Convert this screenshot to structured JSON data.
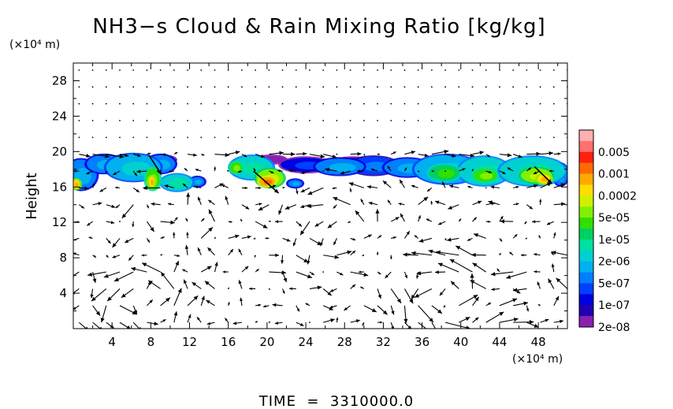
{
  "chart_data": {
    "type": "heatmap",
    "title": "NH3−s Cloud & Rain Mixing Ratio [kg/kg]",
    "xlabel": "",
    "ylabel": "Height",
    "x_unit_label": "(×10⁴ m)",
    "y_unit_label": "(×10⁴ m)",
    "xlim": [
      0,
      51
    ],
    "ylim": [
      0,
      30
    ],
    "x_ticks": [
      4,
      8,
      12,
      16,
      20,
      24,
      28,
      32,
      36,
      40,
      44,
      48
    ],
    "y_ticks": [
      4,
      8,
      12,
      16,
      20,
      24,
      28
    ],
    "footer": "TIME  =  3310000.0",
    "colorbar": {
      "levels": [
        {
          "label": "",
          "color": "#ffb0b0"
        },
        {
          "label": "0.005",
          "color": "#ff7070"
        },
        {
          "label": "",
          "color": "#ff2010"
        },
        {
          "label": "0.001",
          "color": "#ff6a00"
        },
        {
          "label": "",
          "color": "#ffaa00"
        },
        {
          "label": "0.0002",
          "color": "#ffdd00"
        },
        {
          "label": "",
          "color": "#d0f000"
        },
        {
          "label": "5e-05",
          "color": "#80f000"
        },
        {
          "label": "",
          "color": "#30e000"
        },
        {
          "label": "1e-05",
          "color": "#00d060"
        },
        {
          "label": "",
          "color": "#00e0a0"
        },
        {
          "label": "2e-06",
          "color": "#00d0d0"
        },
        {
          "label": "",
          "color": "#00b0f0"
        },
        {
          "label": "5e-07",
          "color": "#0080ff"
        },
        {
          "label": "",
          "color": "#0040ff"
        },
        {
          "label": "1e-07",
          "color": "#0000e0"
        },
        {
          "label": "",
          "color": "#2000b0"
        },
        {
          "label": "2e-08",
          "color": "#8a20b0"
        }
      ]
    },
    "cloud_blobs": [
      {
        "x": 0.8,
        "y": 17.4,
        "rx": 1.6,
        "ry": 1.7,
        "level": 12
      },
      {
        "x": 3.2,
        "y": 18.6,
        "rx": 1.8,
        "ry": 1.0,
        "level": 12
      },
      {
        "x": 6.2,
        "y": 18.2,
        "rx": 2.8,
        "ry": 1.5,
        "level": 11
      },
      {
        "x": 9.0,
        "y": 18.6,
        "rx": 1.5,
        "ry": 1.0,
        "level": 12
      },
      {
        "x": 10.7,
        "y": 16.5,
        "rx": 1.6,
        "ry": 0.9,
        "level": 10
      },
      {
        "x": 12.8,
        "y": 16.6,
        "rx": 0.7,
        "ry": 0.5,
        "level": 12
      },
      {
        "x": 8.2,
        "y": 16.9,
        "rx": 0.7,
        "ry": 1.2,
        "level": 7
      },
      {
        "x": 8.1,
        "y": 16.6,
        "rx": 0.3,
        "ry": 0.6,
        "level": 4
      },
      {
        "x": 0.3,
        "y": 16.3,
        "rx": 0.35,
        "ry": 0.5,
        "level": 4
      },
      {
        "x": 9.2,
        "y": 19.1,
        "rx": 1.3,
        "ry": 0.4,
        "level": 17
      },
      {
        "x": 18.4,
        "y": 18.2,
        "rx": 2.2,
        "ry": 1.3,
        "level": 10
      },
      {
        "x": 20.3,
        "y": 17.0,
        "rx": 1.4,
        "ry": 1.0,
        "level": 6
      },
      {
        "x": 20.0,
        "y": 16.6,
        "rx": 0.8,
        "ry": 0.5,
        "level": 3
      },
      {
        "x": 16.8,
        "y": 18.2,
        "rx": 0.6,
        "ry": 0.6,
        "level": 7
      },
      {
        "x": 22.9,
        "y": 16.4,
        "rx": 0.7,
        "ry": 0.4,
        "level": 12
      },
      {
        "x": 20.4,
        "y": 19.1,
        "rx": 1.5,
        "ry": 0.4,
        "level": 17
      },
      {
        "x": 24.0,
        "y": 18.5,
        "rx": 2.6,
        "ry": 0.8,
        "level": 14
      },
      {
        "x": 27.5,
        "y": 18.3,
        "rx": 2.5,
        "ry": 0.9,
        "level": 12
      },
      {
        "x": 31.0,
        "y": 18.4,
        "rx": 2.5,
        "ry": 1.0,
        "level": 13
      },
      {
        "x": 34.5,
        "y": 18.2,
        "rx": 2.4,
        "ry": 1.0,
        "level": 12
      },
      {
        "x": 28.8,
        "y": 18.9,
        "rx": 1.6,
        "ry": 0.4,
        "level": 15
      },
      {
        "x": 38.6,
        "y": 18.0,
        "rx": 3.4,
        "ry": 1.6,
        "level": 11
      },
      {
        "x": 38.3,
        "y": 17.6,
        "rx": 1.6,
        "ry": 0.9,
        "level": 8
      },
      {
        "x": 42.4,
        "y": 17.8,
        "rx": 2.6,
        "ry": 1.6,
        "level": 10
      },
      {
        "x": 42.5,
        "y": 17.3,
        "rx": 1.2,
        "ry": 0.7,
        "level": 7
      },
      {
        "x": 47.4,
        "y": 17.8,
        "rx": 3.4,
        "ry": 1.6,
        "level": 10
      },
      {
        "x": 47.8,
        "y": 17.3,
        "rx": 1.6,
        "ry": 0.8,
        "level": 6
      },
      {
        "x": 48.6,
        "y": 16.9,
        "rx": 0.7,
        "ry": 0.5,
        "level": 4
      },
      {
        "x": 50.3,
        "y": 17.4,
        "rx": 0.7,
        "ry": 1.2,
        "level": 12
      }
    ],
    "wind_field": {
      "x_spacing": 1.4,
      "y_spacing": 1.9,
      "scale": 0.9,
      "cells": [
        {
          "x": 7.0,
          "y": 3.6,
          "r": 4.0,
          "strength": 2.2
        },
        {
          "x": 38.5,
          "y": 3.6,
          "r": 4.5,
          "strength": 2.2
        },
        {
          "x": 10.0,
          "y": 13.2,
          "r": 4.0,
          "strength": 1.4
        },
        {
          "x": 28.0,
          "y": 12.0,
          "r": 5.0,
          "strength": 1.0
        },
        {
          "x": 18.5,
          "y": 4.5,
          "r": 3.5,
          "strength": -1.0
        },
        {
          "x": 47.5,
          "y": 4.0,
          "r": 4.0,
          "strength": 1.6
        }
      ]
    },
    "highlight_arrows": [
      {
        "x0": 7.8,
        "y0": 19.6,
        "x1": 9.1,
        "y1": 17.4
      },
      {
        "x0": 18.6,
        "y0": 17.8,
        "x1": 21.2,
        "y1": 15.3
      },
      {
        "x0": 47.6,
        "y0": 18.3,
        "x1": 49.4,
        "y1": 16.4
      }
    ]
  }
}
